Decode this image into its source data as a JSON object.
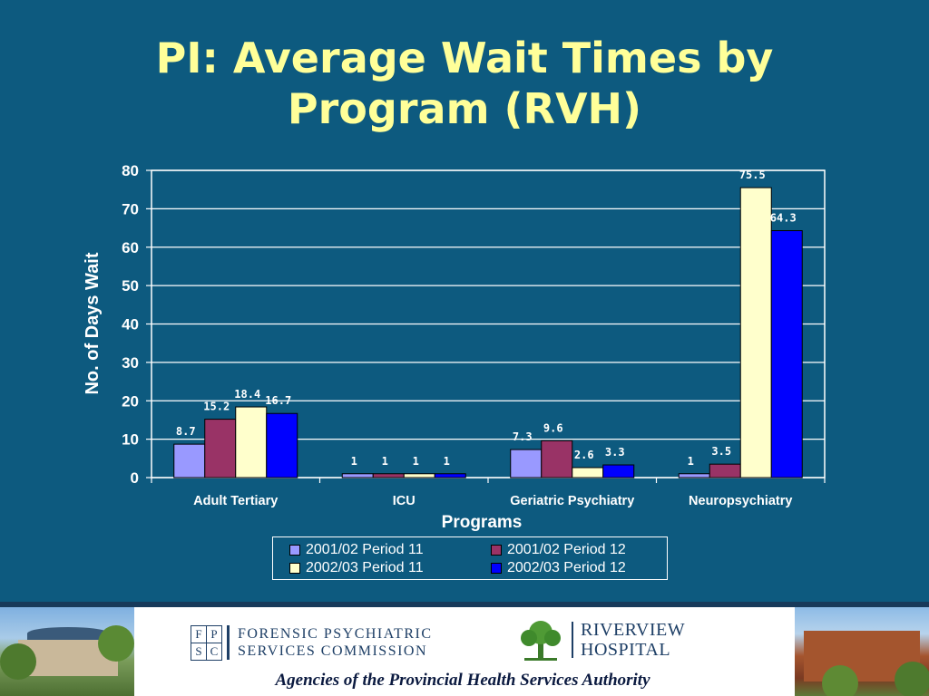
{
  "slide": {
    "title_line1": "PI: Average Wait Times by",
    "title_line2": "Program (RVH)",
    "background_color": "#0d5a7f",
    "title_color": "#ffff99"
  },
  "chart_data": {
    "type": "bar",
    "categories": [
      "Adult Tertiary",
      "ICU",
      "Geriatric Psychiatry",
      "Neuropsychiatry"
    ],
    "series": [
      {
        "name": "2001/02 Period 11",
        "color": "#9999ff",
        "values": [
          8.7,
          1,
          7.3,
          1
        ]
      },
      {
        "name": "2001/02 Period 12",
        "color": "#993366",
        "values": [
          15.2,
          1,
          9.6,
          3.5
        ]
      },
      {
        "name": "2002/03 Period 11",
        "color": "#ffffcc",
        "values": [
          18.4,
          1,
          2.6,
          75.5
        ]
      },
      {
        "name": "2002/03 Period 12",
        "color": "#0000ff",
        "values": [
          16.7,
          1,
          3.3,
          64.3
        ]
      }
    ],
    "value_labels": [
      [
        "8.7",
        "1",
        "7.3",
        "1"
      ],
      [
        "15.2",
        "1",
        "9.6",
        "3.5"
      ],
      [
        "18.4",
        "1",
        "2.6",
        "75.5"
      ],
      [
        "16.7",
        "1",
        "3.3",
        "64.3"
      ]
    ],
    "title": "PI: Average Wait Times by Program (RVH)",
    "xlabel": "Programs",
    "ylabel": "No. of Days Wait",
    "ylim": [
      0,
      80
    ],
    "yticks": [
      0,
      10,
      20,
      30,
      40,
      50,
      60,
      70,
      80
    ],
    "grid": true,
    "legend_position": "bottom"
  },
  "footer": {
    "fpsc_letters": [
      "F",
      "P",
      "S",
      "C"
    ],
    "fpsc_line1": "FORENSIC PSYCHIATRIC",
    "fpsc_line2": "SERVICES COMMISSION",
    "rvh_line1": "RIVERVIEW",
    "rvh_line2": "HOSPITAL",
    "agencies": "Agencies of the Provincial Health Services Authority"
  }
}
